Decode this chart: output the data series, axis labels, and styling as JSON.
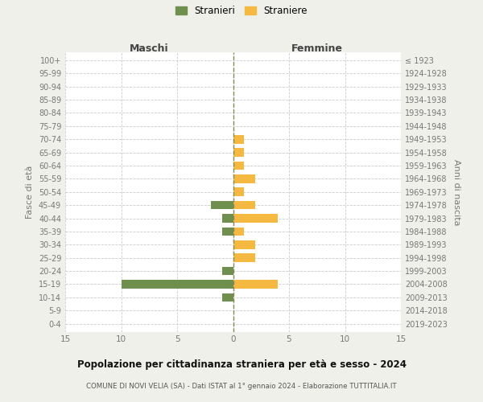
{
  "age_groups": [
    "0-4",
    "5-9",
    "10-14",
    "15-19",
    "20-24",
    "25-29",
    "30-34",
    "35-39",
    "40-44",
    "45-49",
    "50-54",
    "55-59",
    "60-64",
    "65-69",
    "70-74",
    "75-79",
    "80-84",
    "85-89",
    "90-94",
    "95-99",
    "100+"
  ],
  "birth_years": [
    "2019-2023",
    "2014-2018",
    "2009-2013",
    "2004-2008",
    "1999-2003",
    "1994-1998",
    "1989-1993",
    "1984-1988",
    "1979-1983",
    "1974-1978",
    "1969-1973",
    "1964-1968",
    "1959-1963",
    "1954-1958",
    "1949-1953",
    "1944-1948",
    "1939-1943",
    "1934-1938",
    "1929-1933",
    "1924-1928",
    "≤ 1923"
  ],
  "maschi": [
    0,
    0,
    1,
    10,
    1,
    0,
    0,
    1,
    1,
    2,
    0,
    0,
    0,
    0,
    0,
    0,
    0,
    0,
    0,
    0,
    0
  ],
  "femmine": [
    0,
    0,
    0,
    4,
    0,
    2,
    2,
    1,
    4,
    2,
    1,
    2,
    1,
    1,
    1,
    0,
    0,
    0,
    0,
    0,
    0
  ],
  "color_maschi": "#6e8f4e",
  "color_femmine": "#f5b942",
  "title": "Popolazione per cittadinanza straniera per età e sesso - 2024",
  "subtitle": "COMUNE DI NOVI VELIA (SA) - Dati ISTAT al 1° gennaio 2024 - Elaborazione TUTTITALIA.IT",
  "xlabel_left": "Maschi",
  "xlabel_right": "Femmine",
  "ylabel_left": "Fasce di età",
  "ylabel_right": "Anni di nascita",
  "legend_maschi": "Stranieri",
  "legend_femmine": "Straniere",
  "xlim": 15,
  "background_color": "#f0f0eb",
  "plot_background": "#ffffff",
  "grid_color": "#cccccc"
}
